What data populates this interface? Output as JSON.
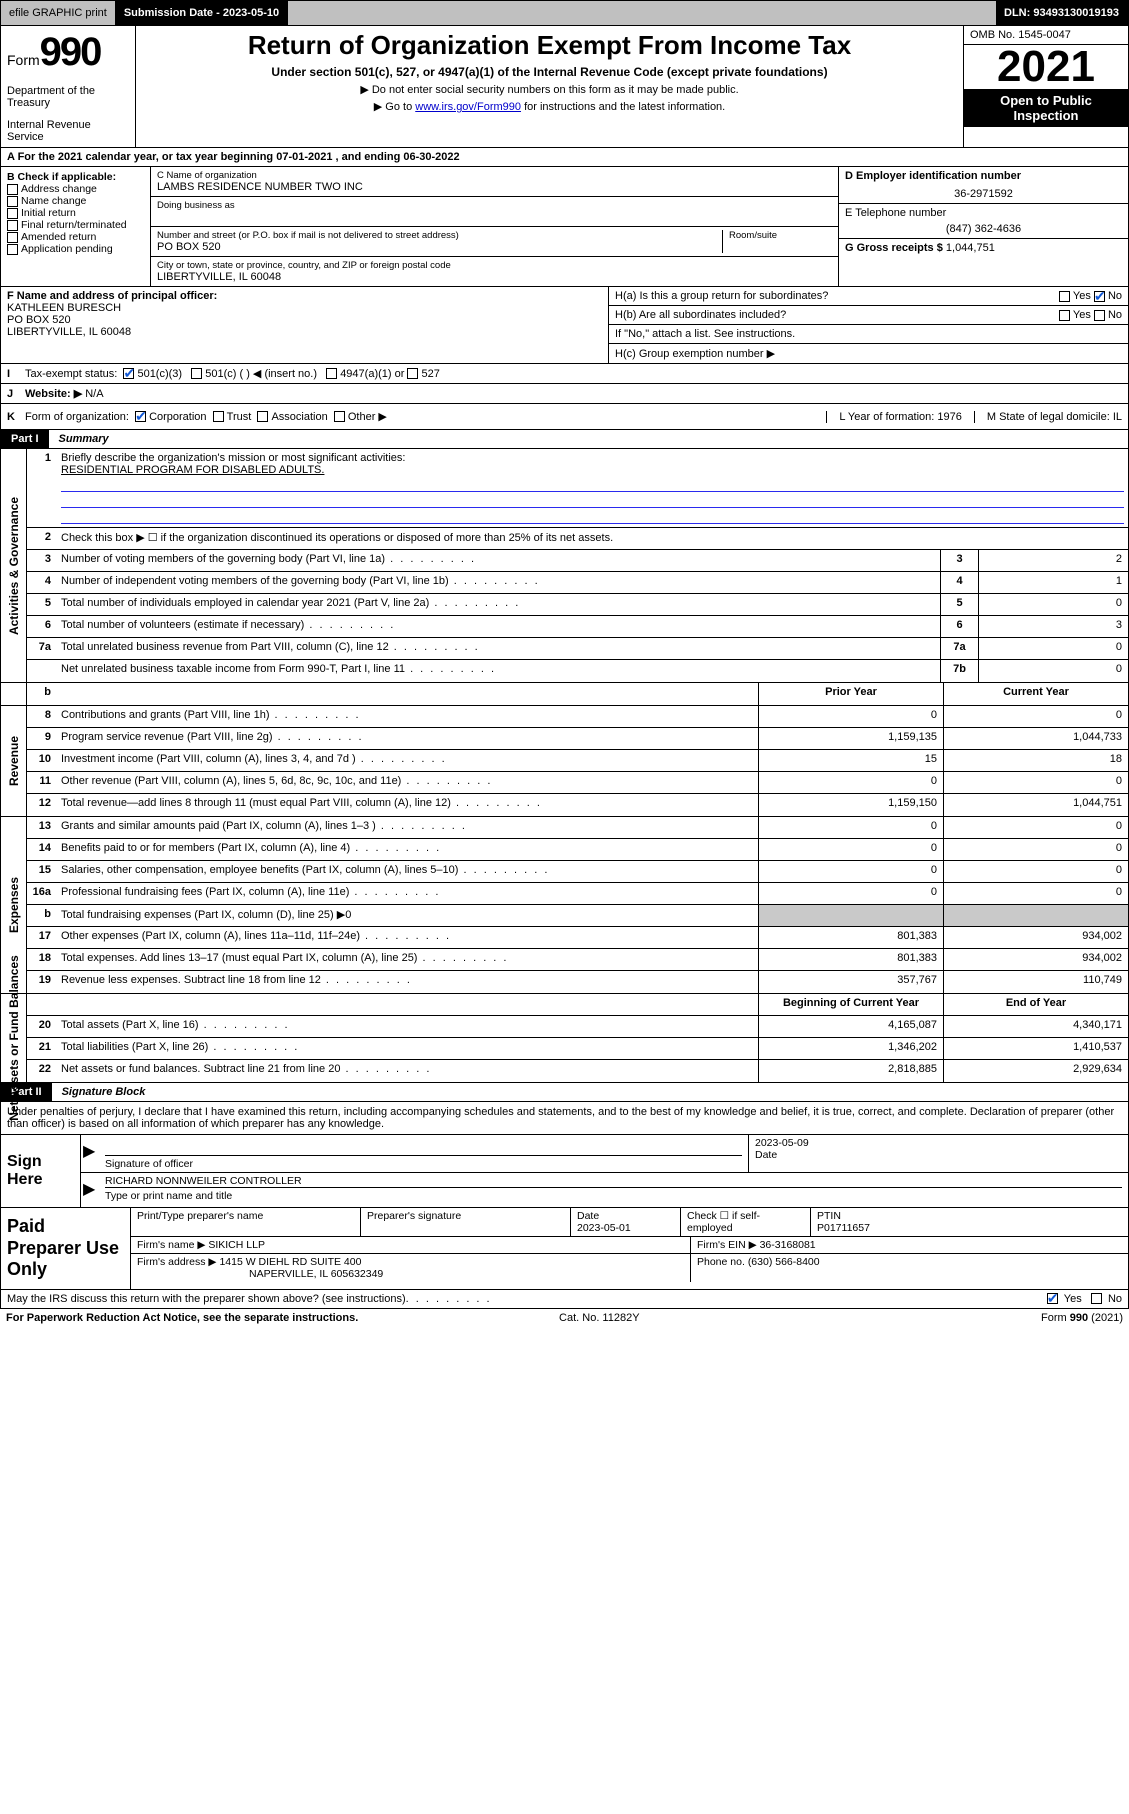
{
  "colors": {
    "link": "#0000cc",
    "blue_rule": "#2a2aee",
    "check_blue": "#1158d6",
    "grey": "#c9c9c9"
  },
  "font": {
    "base_pt": 11,
    "h1_pt": 26,
    "year_pt": 44,
    "n990_pt": 40
  },
  "topbar": {
    "efile": "efile GRAPHIC print",
    "submission_label": "Submission Date - 2023-05-10",
    "dln": "DLN: 93493130019193"
  },
  "head": {
    "form_word": "Form",
    "form_no": "990",
    "title": "Return of Organization Exempt From Income Tax",
    "sub": "Under section 501(c), 527, or 4947(a)(1) of the Internal Revenue Code (except private foundations)",
    "sub2a": "▶ Do not enter social security numbers on this form as it may be made public.",
    "sub2b_pre": "▶ Go to ",
    "sub2b_link": "www.irs.gov/Form990",
    "sub2b_post": " for instructions and the latest information.",
    "dept": "Department of the Treasury",
    "irs": "Internal Revenue Service",
    "omb": "OMB No. 1545-0047",
    "year": "2021",
    "open1": "Open to Public",
    "open2": "Inspection"
  },
  "A": {
    "text_pre": "A For the 2021 calendar year, or tax year beginning ",
    "begin": "07-01-2021",
    "mid": " , and ending ",
    "end": "06-30-2022"
  },
  "B": {
    "label": "B Check if applicable:",
    "items": [
      "Address change",
      "Name change",
      "Initial return",
      "Final return/terminated",
      "Amended return",
      "Application pending"
    ]
  },
  "C": {
    "name_label": "C Name of organization",
    "name": "LAMBS RESIDENCE NUMBER TWO INC",
    "dba_label": "Doing business as",
    "street_label": "Number and street (or P.O. box if mail is not delivered to street address)",
    "room_label": "Room/suite",
    "street": "PO BOX 520",
    "city_label": "City or town, state or province, country, and ZIP or foreign postal code",
    "city": "LIBERTYVILLE, IL  60048"
  },
  "D": {
    "label": "D Employer identification number",
    "value": "36-2971592"
  },
  "E": {
    "label": "E Telephone number",
    "value": "(847) 362-4636"
  },
  "G": {
    "label": "G Gross receipts $",
    "value": "1,044,751"
  },
  "F": {
    "label": "F Name and address of principal officer:",
    "name": "KATHLEEN BURESCH",
    "street": "PO BOX 520",
    "city": "LIBERTYVILLE, IL  60048"
  },
  "H": {
    "a": "H(a)  Is this a group return for subordinates?",
    "a_yes": "Yes",
    "a_no": "No",
    "b": "H(b)  Are all subordinates included?",
    "b_yes": "Yes",
    "b_no": "No",
    "b_note": "If \"No,\" attach a list. See instructions.",
    "c": "H(c)  Group exemption number ▶"
  },
  "I": {
    "label": "I",
    "text": "Tax-exempt status:",
    "opt1": "501(c)(3)",
    "opt2": "501(c) (  ) ◀ (insert no.)",
    "opt3": "4947(a)(1) or",
    "opt4": "527"
  },
  "J": {
    "label": "J",
    "text": "Website: ▶",
    "value": "N/A"
  },
  "K": {
    "label": "K",
    "text": "Form of organization:",
    "opts": [
      "Corporation",
      "Trust",
      "Association",
      "Other ▶"
    ]
  },
  "L": {
    "text": "L Year of formation: 1976"
  },
  "M": {
    "text": "M State of legal domicile: IL"
  },
  "part1": {
    "tag": "Part I",
    "title": "Summary"
  },
  "mission": {
    "n": "1",
    "label": "Briefly describe the organization's mission or most significant activities:",
    "text": "RESIDENTIAL PROGRAM FOR DISABLED ADULTS."
  },
  "governance": {
    "section_label": "Activities & Governance",
    "rows": [
      {
        "n": "2",
        "desc": "Check this box ▶ ☐  if the organization discontinued its operations or disposed of more than 25% of its net assets.",
        "num": "",
        "val": ""
      },
      {
        "n": "3",
        "desc": "Number of voting members of the governing body (Part VI, line 1a)",
        "num": "3",
        "val": "2"
      },
      {
        "n": "4",
        "desc": "Number of independent voting members of the governing body (Part VI, line 1b)",
        "num": "4",
        "val": "1"
      },
      {
        "n": "5",
        "desc": "Total number of individuals employed in calendar year 2021 (Part V, line 2a)",
        "num": "5",
        "val": "0"
      },
      {
        "n": "6",
        "desc": "Total number of volunteers (estimate if necessary)",
        "num": "6",
        "val": "3"
      },
      {
        "n": "7a",
        "desc": "Total unrelated business revenue from Part VIII, column (C), line 12",
        "num": "7a",
        "val": "0"
      },
      {
        "n": "",
        "desc": "Net unrelated business taxable income from Form 990-T, Part I, line 11",
        "num": "7b",
        "val": "0"
      }
    ]
  },
  "twocol_header": {
    "b": "b",
    "prior": "Prior Year",
    "current": "Current Year",
    "begcol": "Beginning of Current Year",
    "endcol": "End of Year"
  },
  "revenue": {
    "section_label": "Revenue",
    "rows": [
      {
        "n": "8",
        "desc": "Contributions and grants (Part VIII, line 1h)",
        "prior": "0",
        "cur": "0"
      },
      {
        "n": "9",
        "desc": "Program service revenue (Part VIII, line 2g)",
        "prior": "1,159,135",
        "cur": "1,044,733"
      },
      {
        "n": "10",
        "desc": "Investment income (Part VIII, column (A), lines 3, 4, and 7d )",
        "prior": "15",
        "cur": "18"
      },
      {
        "n": "11",
        "desc": "Other revenue (Part VIII, column (A), lines 5, 6d, 8c, 9c, 10c, and 11e)",
        "prior": "0",
        "cur": "0"
      },
      {
        "n": "12",
        "desc": "Total revenue—add lines 8 through 11 (must equal Part VIII, column (A), line 12)",
        "prior": "1,159,150",
        "cur": "1,044,751"
      }
    ]
  },
  "expenses": {
    "section_label": "Expenses",
    "rows": [
      {
        "n": "13",
        "desc": "Grants and similar amounts paid (Part IX, column (A), lines 1–3 )",
        "prior": "0",
        "cur": "0"
      },
      {
        "n": "14",
        "desc": "Benefits paid to or for members (Part IX, column (A), line 4)",
        "prior": "0",
        "cur": "0"
      },
      {
        "n": "15",
        "desc": "Salaries, other compensation, employee benefits (Part IX, column (A), lines 5–10)",
        "prior": "0",
        "cur": "0"
      },
      {
        "n": "16a",
        "desc": "Professional fundraising fees (Part IX, column (A), line 11e)",
        "prior": "0",
        "cur": "0"
      },
      {
        "n": "b",
        "desc": "Total fundraising expenses (Part IX, column (D), line 25) ▶0",
        "prior": "",
        "cur": "",
        "grey": true
      },
      {
        "n": "17",
        "desc": "Other expenses (Part IX, column (A), lines 11a–11d, 11f–24e)",
        "prior": "801,383",
        "cur": "934,002"
      },
      {
        "n": "18",
        "desc": "Total expenses. Add lines 13–17 (must equal Part IX, column (A), line 25)",
        "prior": "801,383",
        "cur": "934,002"
      },
      {
        "n": "19",
        "desc": "Revenue less expenses. Subtract line 18 from line 12",
        "prior": "357,767",
        "cur": "110,749"
      }
    ]
  },
  "netassets": {
    "section_label": "Net Assets or Fund Balances",
    "rows": [
      {
        "n": "20",
        "desc": "Total assets (Part X, line 16)",
        "prior": "4,165,087",
        "cur": "4,340,171"
      },
      {
        "n": "21",
        "desc": "Total liabilities (Part X, line 26)",
        "prior": "1,346,202",
        "cur": "1,410,537"
      },
      {
        "n": "22",
        "desc": "Net assets or fund balances. Subtract line 21 from line 20",
        "prior": "2,818,885",
        "cur": "2,929,634"
      }
    ]
  },
  "part2": {
    "tag": "Part II",
    "title": "Signature Block"
  },
  "sigtext": "Under penalties of perjury, I declare that I have examined this return, including accompanying schedules and statements, and to the best of my knowledge and belief, it is true, correct, and complete. Declaration of preparer (other than officer) is based on all information of which preparer has any knowledge.",
  "sign": {
    "here": "Sign Here",
    "sig_label": "Signature of officer",
    "date": "2023-05-09",
    "date_label": "Date",
    "name": "RICHARD NONNWEILER  CONTROLLER",
    "name_label": "Type or print name and title"
  },
  "prep": {
    "here": "Paid Preparer Use Only",
    "h": {
      "name": "Print/Type preparer's name",
      "sig": "Preparer's signature",
      "date": "Date",
      "check": "Check ☐ if self-employed",
      "ptin": "PTIN"
    },
    "r1": {
      "date": "2023-05-01",
      "ptin": "P01711657"
    },
    "firm_name_l": "Firm's name    ▶",
    "firm_name": "SIKICH LLP",
    "firm_ein_l": "Firm's EIN ▶",
    "firm_ein": "36-3168081",
    "firm_addr_l": "Firm's address ▶",
    "firm_addr1": "1415 W DIEHL RD SUITE 400",
    "firm_addr2": "NAPERVILLE, IL  605632349",
    "phone_l": "Phone no.",
    "phone": "(630) 566-8400"
  },
  "discuss": {
    "text": "May the IRS discuss this return with the preparer shown above? (see instructions)",
    "yes": "Yes",
    "no": "No"
  },
  "foot": {
    "left": "For Paperwork Reduction Act Notice, see the separate instructions.",
    "mid": "Cat. No. 11282Y",
    "right": "Form 990 (2021)"
  }
}
